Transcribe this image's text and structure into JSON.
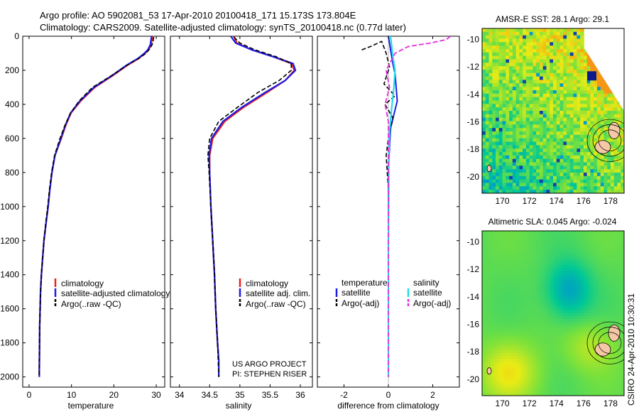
{
  "title": {
    "line1": "Argo profile: AO 5902081_53 17-Apr-2010 20100418_171 15.173S 173.804E",
    "line2": "Climatology: CARS2009. Satellite-adjusted climatology: synTS_20100418.nc (0.77d later)"
  },
  "credit": "CSIRO 24-Apr-2010 10:30:31",
  "project": {
    "line1": "US ARGO PROJECT",
    "line2": "PI: STEPHEN RISER"
  },
  "colors": {
    "climatology": "#e8201a",
    "satellite": "#1c1ce6",
    "argo": "#000000",
    "sal_satellite": "#22dce8",
    "sal_argo": "#e62ee0"
  },
  "chart_data": [
    {
      "type": "line",
      "id": "temperature",
      "xlabel": "temperature",
      "ylabel": "",
      "xlim": [
        -1.5,
        32
      ],
      "ylim": [
        2060,
        0
      ],
      "xticks": [
        0,
        10,
        20,
        30
      ],
      "yticks": [
        0,
        200,
        400,
        600,
        800,
        1000,
        1200,
        1400,
        1600,
        1800,
        2000
      ],
      "legend": {
        "position": "lower-left",
        "entries": [
          "climatology",
          "satellite-adjusted climatology",
          "Argo(..raw -QC)"
        ]
      },
      "series": [
        {
          "name": "climatology",
          "x": [
            29.1,
            28.8,
            28.2,
            27.4,
            25.9,
            23.2,
            19.8,
            15.5,
            12.2,
            9.9,
            8.7,
            7.6,
            6.1,
            5.4,
            4.9,
            4.5,
            4.0,
            3.5,
            3.2,
            2.9,
            2.7,
            2.5,
            2.4
          ],
          "y": [
            0,
            50,
            80,
            100,
            130,
            170,
            230,
            300,
            380,
            450,
            520,
            600,
            700,
            800,
            900,
            1000,
            1100,
            1200,
            1300,
            1400,
            1500,
            1700,
            2000
          ]
        },
        {
          "name": "satellite-adjusted climatology",
          "x": [
            28.9,
            28.6,
            28.0,
            27.2,
            25.7,
            23.0,
            19.6,
            15.3,
            12.0,
            9.8,
            8.6,
            7.5,
            6.1,
            5.4,
            4.9,
            4.5,
            4.0,
            3.5,
            3.2,
            2.9,
            2.7,
            2.5,
            2.4
          ],
          "y": [
            0,
            50,
            80,
            100,
            130,
            170,
            230,
            300,
            380,
            450,
            520,
            600,
            700,
            800,
            900,
            1000,
            1100,
            1200,
            1300,
            1400,
            1500,
            1700,
            2000
          ]
        },
        {
          "name": "Argo(..raw -QC)",
          "x": [
            29.4,
            29.2,
            28.6,
            27.6,
            25.9,
            23.1,
            19.5,
            15.0,
            11.8,
            9.8,
            8.5,
            7.3,
            6.0,
            5.3,
            4.8,
            4.4,
            3.9,
            3.5,
            3.2,
            2.9,
            2.7,
            2.5,
            2.4
          ],
          "y": [
            5,
            40,
            70,
            100,
            130,
            170,
            230,
            300,
            380,
            450,
            520,
            600,
            700,
            800,
            900,
            1000,
            1100,
            1200,
            1300,
            1400,
            1500,
            1700,
            2000
          ]
        }
      ]
    },
    {
      "type": "line",
      "id": "salinity",
      "xlabel": "salinity",
      "xlim": [
        33.85,
        36.2
      ],
      "ylim": [
        2060,
        0
      ],
      "xticks": [
        34,
        34.5,
        35,
        35.5,
        36
      ],
      "xticklabels": [
        "34",
        "34.5",
        "35",
        "35.5",
        "36"
      ],
      "legend": {
        "position": "lower-left",
        "entries": [
          "climatology",
          "satellite adj. clim.",
          "Argo(..raw -QC)"
        ]
      },
      "series": [
        {
          "name": "climatology",
          "x": [
            34.9,
            34.95,
            35.2,
            35.55,
            35.85,
            35.9,
            35.75,
            35.45,
            35.05,
            34.75,
            34.55,
            34.5,
            34.5,
            34.52,
            34.55,
            34.58,
            34.6,
            34.63,
            34.65,
            34.65
          ],
          "y": [
            0,
            40,
            80,
            120,
            160,
            200,
            260,
            330,
            420,
            500,
            600,
            700,
            800,
            1000,
            1200,
            1400,
            1600,
            1800,
            1900,
            2000
          ]
        },
        {
          "name": "satellite adj. clim.",
          "x": [
            34.85,
            34.93,
            35.2,
            35.55,
            35.88,
            35.92,
            35.75,
            35.42,
            35.02,
            34.72,
            34.53,
            34.49,
            34.5,
            34.52,
            34.55,
            34.58,
            34.6,
            34.63,
            34.65,
            34.65
          ],
          "y": [
            0,
            40,
            80,
            120,
            160,
            200,
            260,
            330,
            420,
            500,
            600,
            700,
            800,
            1000,
            1200,
            1400,
            1600,
            1800,
            1900,
            2000
          ]
        },
        {
          "name": "Argo(..raw -QC)",
          "x": [
            34.9,
            35.0,
            35.25,
            35.6,
            35.85,
            35.85,
            35.65,
            35.3,
            34.95,
            34.65,
            34.5,
            34.47,
            34.49,
            34.52,
            34.55,
            34.58,
            34.6,
            34.63,
            34.65
          ],
          "y": [
            5,
            40,
            80,
            120,
            160,
            200,
            260,
            330,
            420,
            500,
            600,
            700,
            800,
            1000,
            1200,
            1400,
            1600,
            1800,
            2000
          ]
        }
      ]
    },
    {
      "type": "line",
      "id": "difference",
      "xlabel": "difference from climatology",
      "xlim": [
        -3.2,
        3.2
      ],
      "ylim": [
        2060,
        0
      ],
      "xticks": [
        -2,
        0,
        2
      ],
      "legend": {
        "position": "lower-center",
        "headers": [
          "temperature",
          "salinity"
        ],
        "entries": [
          "satellite",
          "Argo(-adj)",
          "satellite",
          "Argo(-adj)"
        ]
      },
      "series": [
        {
          "name": "temperature satellite",
          "x": [
            0.0,
            0.05,
            0.1,
            0.15,
            0.2,
            0.3,
            0.4,
            0.25,
            0.1,
            0.05,
            0.0,
            0.0,
            0.0,
            0.0,
            0.0,
            0.0
          ],
          "y": [
            0,
            40,
            80,
            120,
            160,
            220,
            380,
            460,
            540,
            650,
            800,
            1000,
            1200,
            1500,
            1800,
            2000
          ]
        },
        {
          "name": "temperature Argo(-adj)",
          "x": [
            -1.2,
            -0.8,
            -0.3,
            -0.1,
            0.05,
            -0.2,
            0.3,
            -0.15,
            0.2,
            0.0,
            -0.1,
            0.0,
            0.0,
            0.0,
            0.0
          ],
          "y": [
            80,
            60,
            30,
            100,
            180,
            280,
            350,
            400,
            480,
            600,
            700,
            900,
            1200,
            1600,
            2000
          ]
        },
        {
          "name": "salinity satellite",
          "x": [
            0.1,
            0.15,
            0.2,
            0.3,
            0.25,
            0.15,
            0.05,
            0.02,
            0.02,
            0.0,
            0.0,
            0.0
          ],
          "y": [
            0,
            60,
            120,
            200,
            300,
            420,
            560,
            700,
            900,
            1200,
            1600,
            2000
          ]
        },
        {
          "name": "salinity Argo(-adj)",
          "x": [
            2.8,
            2.6,
            1.9,
            0.9,
            0.3,
            -0.1,
            0.05,
            -0.15,
            0.0,
            0.0,
            0.0
          ],
          "y": [
            0,
            20,
            40,
            60,
            100,
            200,
            300,
            400,
            500,
            800,
            2000
          ]
        }
      ]
    },
    {
      "type": "heatmap",
      "id": "sst-map",
      "title": "AMSR-E SST: 28.1 Argo: 29.1",
      "xlim": [
        168.5,
        179
      ],
      "ylim": [
        -21.2,
        -9.2
      ],
      "xticks": [
        170,
        172,
        174,
        176,
        178
      ],
      "yticks": [
        -10,
        -12,
        -14,
        -16,
        -18,
        -20
      ],
      "marker": {
        "lon": 173.8,
        "lat": -15.17
      }
    },
    {
      "type": "heatmap",
      "id": "sla-map",
      "title": "Altimetric SLA: 0.045 Argo: -0.024",
      "xlim": [
        168.5,
        179
      ],
      "ylim": [
        -21.2,
        -9.2
      ],
      "xticks": [
        170,
        172,
        174,
        176,
        178
      ],
      "yticks": [
        -10,
        -12,
        -14,
        -16,
        -18,
        -20
      ],
      "marker": {
        "lon": 173.8,
        "lat": -15.17
      }
    }
  ]
}
